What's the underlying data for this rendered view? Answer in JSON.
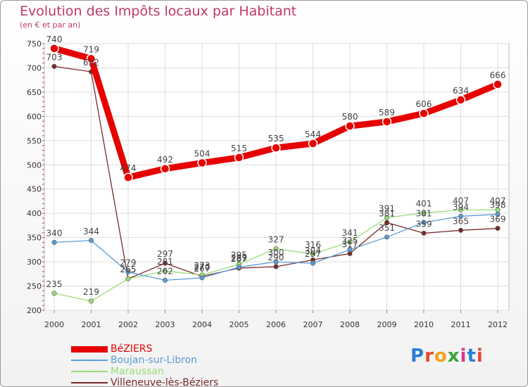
{
  "header": {
    "title": "Evolution des Impôts locaux par Habitant",
    "subtitle": "(en € et par an)"
  },
  "logo": {
    "letters": [
      "P",
      "r",
      "o",
      "x",
      "i",
      "t",
      "i"
    ],
    "colors": [
      "#2a7fd4",
      "#e64a2e",
      "#f2a51a",
      "#3aa53a",
      "#d63b8c",
      "#2a7fd4",
      "#e64a2e"
    ]
  },
  "chart_data": {
    "type": "line",
    "title": "Evolution des Impôts locaux par Habitant",
    "ylabel": "(en € et par an)",
    "xlabel": "",
    "grid": true,
    "ylim": [
      200,
      750
    ],
    "yticks": [
      200,
      250,
      300,
      350,
      400,
      450,
      500,
      550,
      600,
      650,
      700,
      750
    ],
    "categories": [
      "2000",
      "2001",
      "2002",
      "2003",
      "2004",
      "2005",
      "2006",
      "2007",
      "2008",
      "2009",
      "2010",
      "2011",
      "2012"
    ],
    "legend_position": "bottom-left",
    "series": [
      {
        "name": "BéZIERS",
        "color": "#e60000",
        "values": [
          740,
          719,
          474,
          492,
          504,
          515,
          535,
          544,
          580,
          589,
          606,
          634,
          666
        ],
        "labels": [
          "740",
          "719",
          "474",
          "492",
          "504",
          "515",
          "535",
          "544",
          "580",
          "589",
          "606",
          "634",
          "666"
        ]
      },
      {
        "name": "Boujan-sur-Libron",
        "color": "#5b9bd5",
        "values": [
          340,
          344,
          279,
          262,
          267,
          289,
          300,
          297,
          325,
          351,
          381,
          394,
          398
        ],
        "labels": [
          "340",
          "344",
          "279",
          "262",
          "267",
          "289",
          "300",
          "297",
          "325",
          "351",
          "381",
          "394",
          "398"
        ]
      },
      {
        "name": "Maraussan",
        "color": "#99dd77",
        "values": [
          235,
          219,
          265,
          281,
          273,
          295,
          327,
          316,
          341,
          391,
          401,
          407,
          407
        ],
        "labels": [
          "235",
          "219",
          "265",
          "281",
          "273",
          "295",
          "327",
          "316",
          "341",
          "391",
          "401",
          "407",
          "407"
        ]
      },
      {
        "name": "Villeneuve-lès-Béziers",
        "color": "#7b2a2a",
        "values": [
          703,
          692,
          265,
          297,
          270,
          287,
          290,
          304,
          317,
          381,
          359,
          365,
          369
        ],
        "labels": [
          "703",
          "692",
          "265",
          "297",
          "270",
          "287",
          "290",
          "304",
          "317",
          "381",
          "359",
          "365",
          "369"
        ]
      }
    ]
  }
}
